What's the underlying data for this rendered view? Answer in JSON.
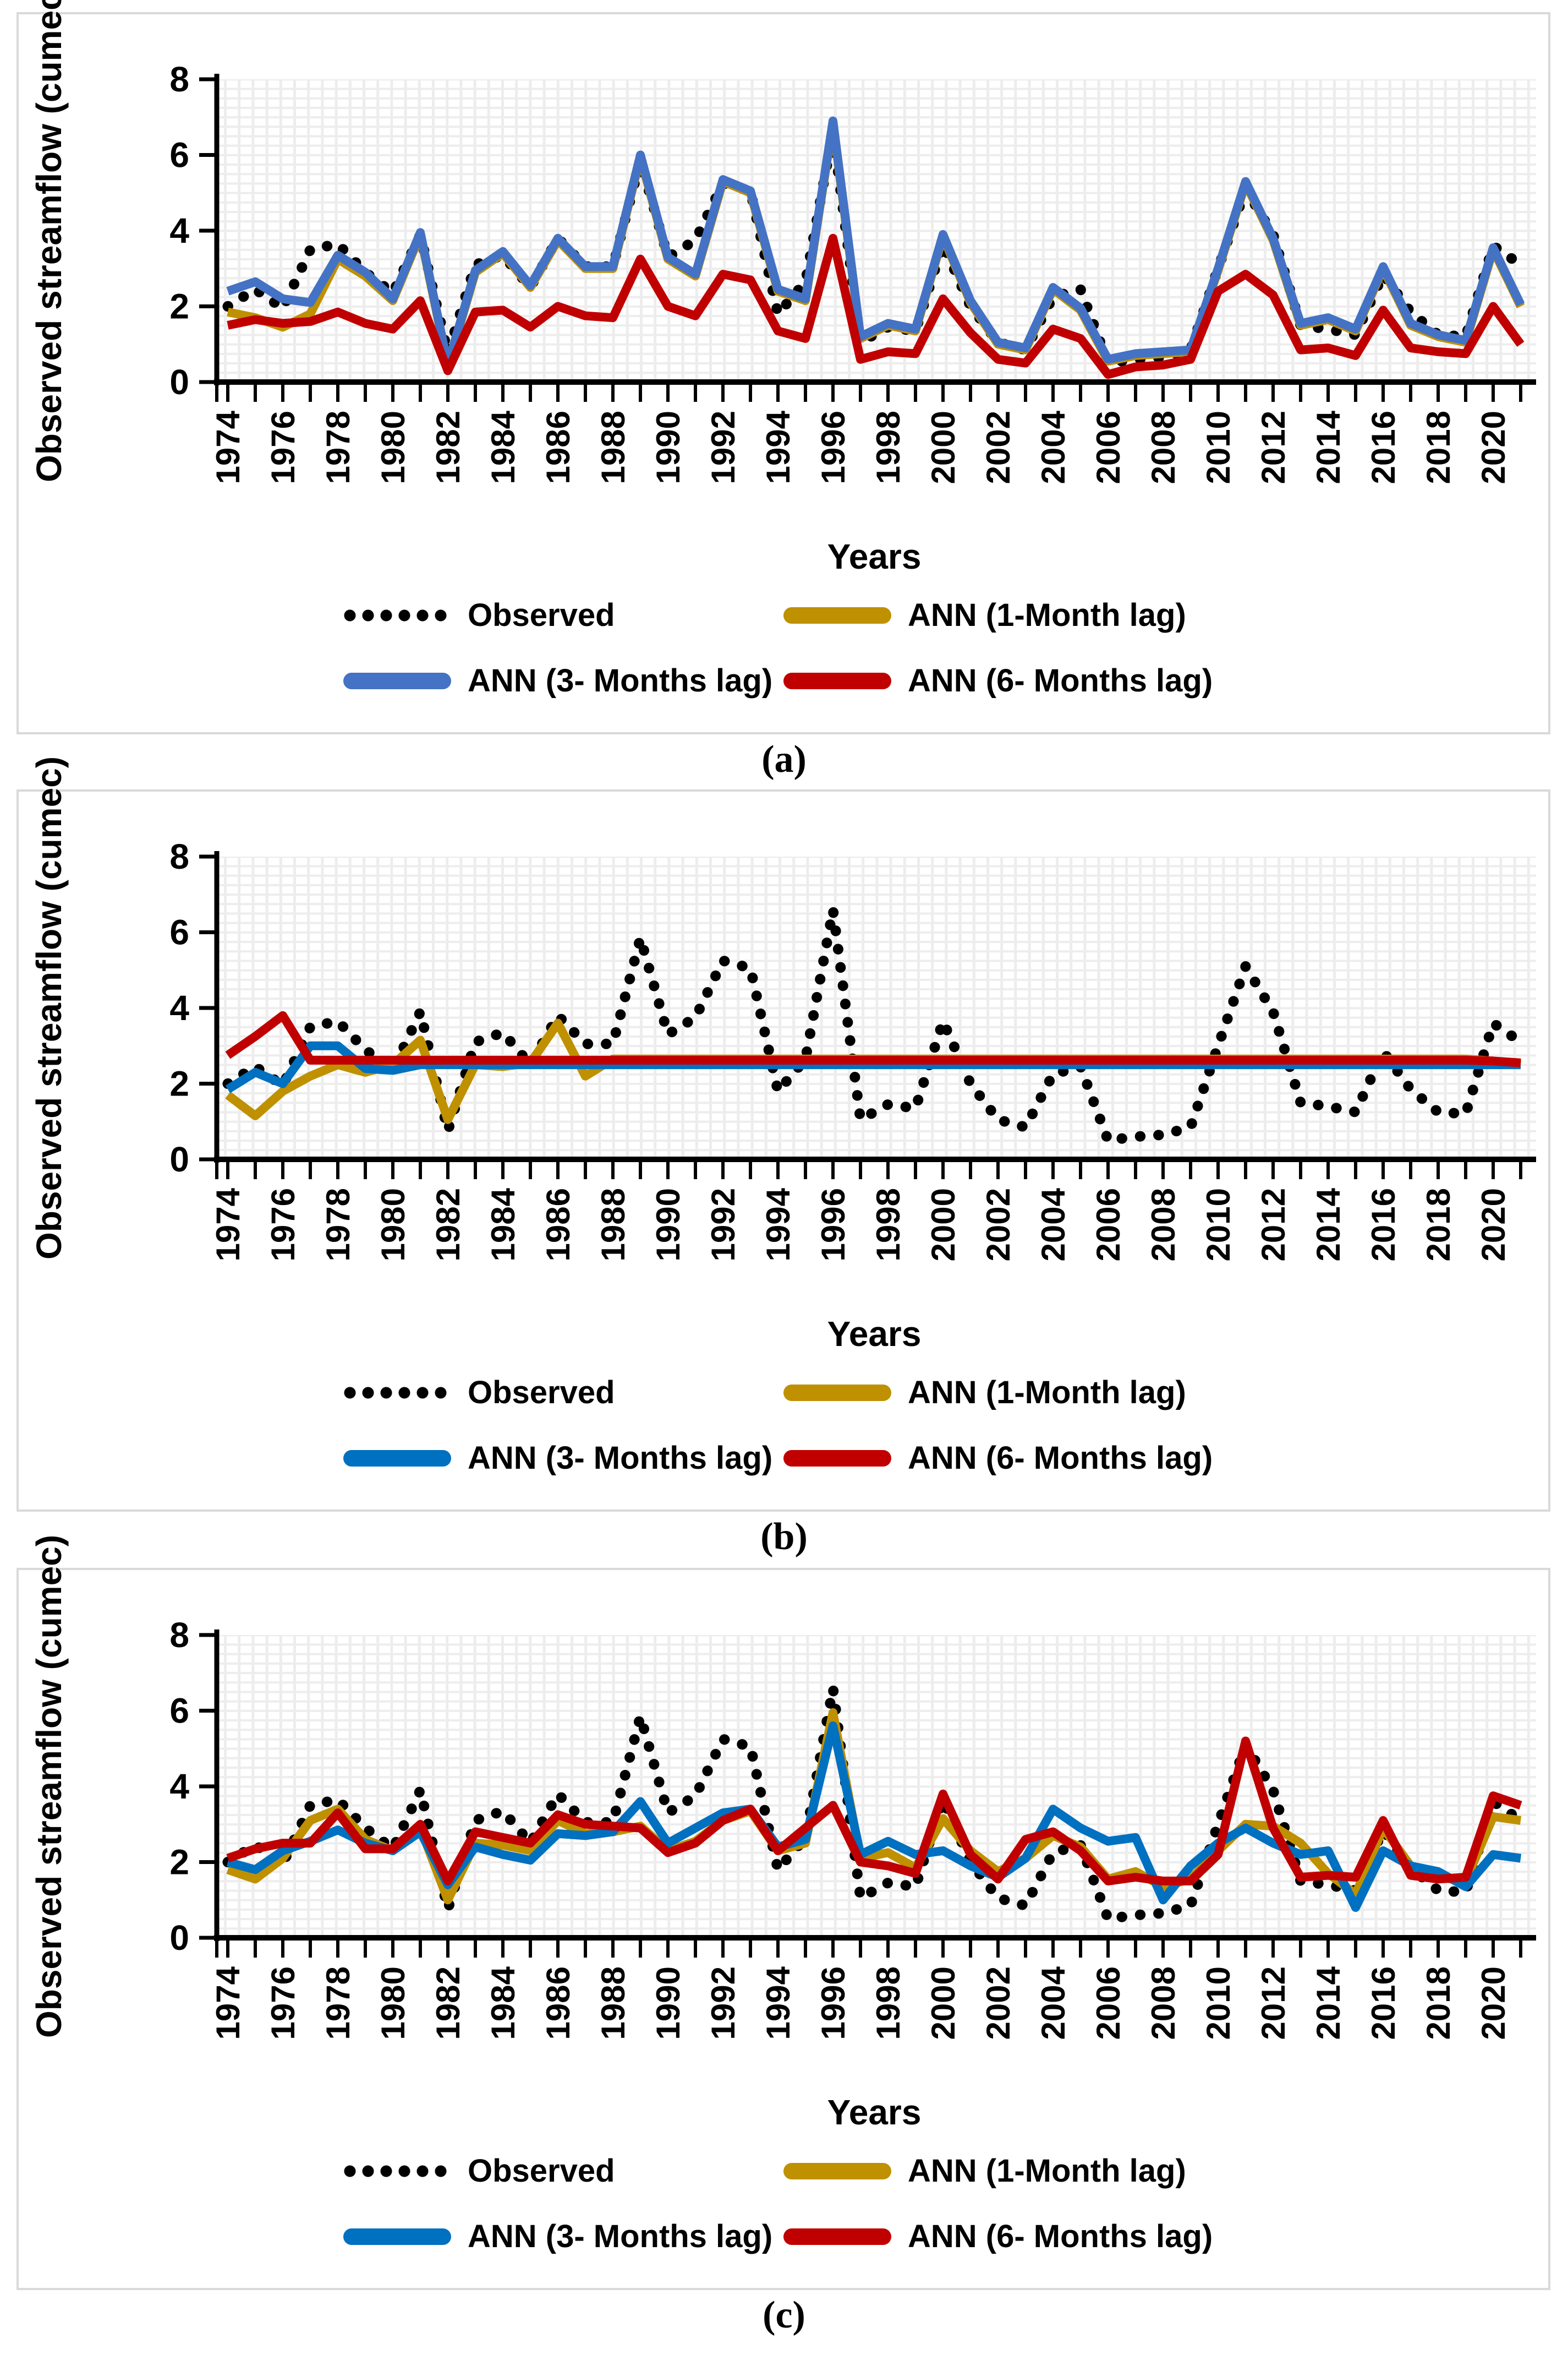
{
  "figure": {
    "y_axis_title": "Observed streamflow (cumec)",
    "x_axis_title": "Years",
    "y_ticks": [
      "0",
      "2",
      "4",
      "6",
      "8"
    ],
    "ylim": [
      0,
      8
    ],
    "x_years": [
      1974,
      1975,
      1976,
      1977,
      1978,
      1979,
      1980,
      1981,
      1982,
      1983,
      1984,
      1985,
      1986,
      1987,
      1988,
      1989,
      1990,
      1991,
      1992,
      1993,
      1994,
      1995,
      1996,
      1997,
      1998,
      1999,
      2000,
      2001,
      2002,
      2003,
      2004,
      2005,
      2006,
      2007,
      2008,
      2009,
      2010,
      2011,
      2012,
      2013,
      2014,
      2015,
      2016,
      2017,
      2018,
      2019,
      2020,
      2021
    ],
    "x_labeled_years": [
      1974,
      1976,
      1978,
      1980,
      1982,
      1984,
      1986,
      1988,
      1990,
      1992,
      1994,
      1996,
      1998,
      2000,
      2002,
      2004,
      2006,
      2008,
      2010,
      2012,
      2014,
      2016,
      2018,
      2020
    ],
    "captions": [
      "(a)",
      "(b)",
      "(c)"
    ]
  },
  "legend_labels": [
    "Observed",
    "ANN (1-Month lag)",
    "ANN (3- Months lag)",
    "ANN (6- Months lag)"
  ],
  "colors": {
    "observed": "#000000",
    "ann_1_month": "#BF9000",
    "ann_3_months_panel_a": "#4472C4",
    "ann_3_months_panel_bc": "#0070C0",
    "ann_6_months": "#C00000",
    "grid": "#EDEDED",
    "panel_border": "#D9D9D9",
    "axis": "#000000"
  },
  "chart_data": [
    {
      "panel": "a",
      "type": "line",
      "title": "",
      "xlabel": "Years",
      "ylabel": "Observed streamflow (cumec)",
      "ylim": [
        0,
        8
      ],
      "grid": true,
      "legend_position": "bottom",
      "x": [
        1974,
        1975,
        1976,
        1977,
        1978,
        1979,
        1980,
        1981,
        1982,
        1983,
        1984,
        1985,
        1986,
        1987,
        1988,
        1989,
        1990,
        1991,
        1992,
        1993,
        1994,
        1995,
        1996,
        1997,
        1998,
        1999,
        2000,
        2001,
        2002,
        2003,
        2004,
        2005,
        2006,
        2007,
        2008,
        2009,
        2010,
        2011,
        2012,
        2013,
        2014,
        2015,
        2016,
        2017,
        2018,
        2019,
        2020,
        2021
      ],
      "series": [
        {
          "name": "Observed",
          "style": "dotted",
          "color": "#000000",
          "values": [
            2.0,
            2.45,
            1.95,
            3.5,
            3.65,
            2.9,
            2.35,
            3.9,
            0.75,
            3.1,
            3.35,
            2.5,
            3.8,
            3.05,
            3.05,
            5.85,
            3.3,
            3.75,
            5.25,
            5.05,
            1.8,
            2.65,
            6.6,
            1.05,
            1.45,
            1.35,
            3.65,
            2.0,
            1.05,
            0.85,
            2.25,
            2.45,
            0.5,
            0.6,
            0.65,
            0.85,
            3.0,
            5.1,
            3.9,
            1.5,
            1.4,
            1.25,
            2.85,
            1.85,
            1.25,
            1.2,
            3.6,
            3.1
          ]
        },
        {
          "name": "ANN (1-Month lag)",
          "style": "solid",
          "color": "#BF9000",
          "values": [
            1.85,
            1.7,
            1.45,
            1.8,
            3.25,
            2.8,
            2.15,
            3.9,
            0.42,
            2.9,
            3.4,
            2.5,
            3.75,
            3.0,
            3.0,
            5.95,
            3.25,
            2.8,
            5.3,
            5.0,
            2.4,
            2.15,
            6.85,
            1.15,
            1.5,
            1.35,
            3.85,
            2.1,
            1.0,
            0.85,
            2.45,
            1.9,
            0.55,
            0.7,
            0.75,
            0.8,
            2.95,
            5.25,
            3.75,
            1.5,
            1.65,
            1.35,
            3.0,
            1.5,
            1.2,
            1.05,
            3.5,
            2.0
          ]
        },
        {
          "name": "ANN (3- Months lag)",
          "style": "solid",
          "color": "#4472C4",
          "values": [
            2.4,
            2.65,
            2.2,
            2.1,
            3.35,
            2.9,
            2.2,
            3.95,
            0.45,
            2.95,
            3.45,
            2.55,
            3.8,
            3.05,
            3.05,
            6.0,
            3.3,
            2.85,
            5.35,
            5.05,
            2.45,
            2.2,
            6.9,
            1.2,
            1.55,
            1.4,
            3.9,
            2.15,
            1.05,
            0.9,
            2.5,
            1.95,
            0.6,
            0.75,
            0.8,
            0.85,
            3.0,
            5.3,
            3.8,
            1.55,
            1.7,
            1.4,
            3.05,
            1.55,
            1.25,
            1.1,
            3.55,
            2.05
          ]
        },
        {
          "name": "ANN (6- Months lag)",
          "style": "solid",
          "color": "#C00000",
          "values": [
            1.5,
            1.65,
            1.55,
            1.6,
            1.85,
            1.55,
            1.4,
            2.15,
            0.3,
            1.85,
            1.9,
            1.45,
            2.0,
            1.75,
            1.7,
            3.25,
            2.0,
            1.75,
            2.85,
            2.7,
            1.35,
            1.15,
            3.8,
            0.6,
            0.8,
            0.75,
            2.2,
            1.3,
            0.6,
            0.5,
            1.4,
            1.15,
            0.2,
            0.4,
            0.45,
            0.6,
            2.4,
            2.85,
            2.3,
            0.85,
            0.9,
            0.7,
            1.9,
            0.9,
            0.8,
            0.75,
            2.0,
            1.0
          ]
        }
      ]
    },
    {
      "panel": "b",
      "type": "line",
      "title": "",
      "xlabel": "Years",
      "ylabel": "Observed streamflow (cumec)",
      "ylim": [
        0,
        8
      ],
      "grid": true,
      "legend_position": "bottom",
      "x": [
        1974,
        1975,
        1976,
        1977,
        1978,
        1979,
        1980,
        1981,
        1982,
        1983,
        1984,
        1985,
        1986,
        1987,
        1988,
        1989,
        1990,
        1991,
        1992,
        1993,
        1994,
        1995,
        1996,
        1997,
        1998,
        1999,
        2000,
        2001,
        2002,
        2003,
        2004,
        2005,
        2006,
        2007,
        2008,
        2009,
        2010,
        2011,
        2012,
        2013,
        2014,
        2015,
        2016,
        2017,
        2018,
        2019,
        2020,
        2021
      ],
      "series": [
        {
          "name": "Observed",
          "style": "dotted",
          "color": "#000000",
          "values": [
            2.0,
            2.45,
            1.95,
            3.5,
            3.65,
            2.9,
            2.35,
            3.9,
            0.75,
            3.1,
            3.35,
            2.5,
            3.8,
            3.05,
            3.05,
            5.85,
            3.3,
            3.75,
            5.25,
            5.05,
            1.8,
            2.65,
            6.6,
            1.05,
            1.45,
            1.35,
            3.65,
            2.0,
            1.05,
            0.85,
            2.25,
            2.45,
            0.5,
            0.6,
            0.65,
            0.85,
            3.0,
            5.1,
            3.9,
            1.5,
            1.4,
            1.25,
            2.85,
            1.85,
            1.25,
            1.2,
            3.6,
            3.1
          ]
        },
        {
          "name": "ANN (1-Month lag)",
          "style": "solid",
          "color": "#BF9000",
          "values": [
            1.7,
            1.15,
            1.8,
            2.2,
            2.5,
            2.3,
            2.5,
            3.15,
            1.05,
            2.5,
            2.45,
            2.55,
            3.6,
            2.2,
            2.65,
            2.65,
            2.65,
            2.65,
            2.65,
            2.65,
            2.65,
            2.65,
            2.65,
            2.65,
            2.65,
            2.65,
            2.65,
            2.65,
            2.65,
            2.65,
            2.65,
            2.65,
            2.65,
            2.65,
            2.65,
            2.65,
            2.65,
            2.65,
            2.65,
            2.65,
            2.65,
            2.65,
            2.65,
            2.65,
            2.65,
            2.65,
            2.6,
            2.5
          ]
        },
        {
          "name": "ANN (3- Months lag)",
          "style": "solid",
          "color": "#0070C0",
          "values": [
            1.85,
            2.3,
            2.0,
            3.0,
            3.0,
            2.4,
            2.35,
            2.5,
            2.5,
            2.5,
            2.5,
            2.5,
            2.5,
            2.5,
            2.5,
            2.5,
            2.5,
            2.5,
            2.5,
            2.5,
            2.5,
            2.5,
            2.5,
            2.5,
            2.5,
            2.5,
            2.5,
            2.5,
            2.5,
            2.5,
            2.5,
            2.5,
            2.5,
            2.5,
            2.5,
            2.5,
            2.5,
            2.5,
            2.5,
            2.5,
            2.5,
            2.5,
            2.5,
            2.5,
            2.5,
            2.5,
            2.5,
            2.5
          ]
        },
        {
          "name": "ANN (6- Months lag)",
          "style": "solid",
          "color": "#C00000",
          "values": [
            2.75,
            3.25,
            3.8,
            2.62,
            2.62,
            2.62,
            2.62,
            2.62,
            2.62,
            2.62,
            2.62,
            2.62,
            2.62,
            2.62,
            2.62,
            2.62,
            2.62,
            2.62,
            2.62,
            2.62,
            2.62,
            2.62,
            2.62,
            2.62,
            2.62,
            2.62,
            2.62,
            2.62,
            2.62,
            2.62,
            2.62,
            2.62,
            2.62,
            2.62,
            2.62,
            2.62,
            2.62,
            2.62,
            2.62,
            2.62,
            2.62,
            2.62,
            2.62,
            2.62,
            2.62,
            2.62,
            2.6,
            2.55
          ]
        }
      ]
    },
    {
      "panel": "c",
      "type": "line",
      "title": "",
      "xlabel": "Years",
      "ylabel": "Observed streamflow (cumec)",
      "ylim": [
        0,
        8
      ],
      "grid": true,
      "legend_position": "bottom",
      "x": [
        1974,
        1975,
        1976,
        1977,
        1978,
        1979,
        1980,
        1981,
        1982,
        1983,
        1984,
        1985,
        1986,
        1987,
        1988,
        1989,
        1990,
        1991,
        1992,
        1993,
        1994,
        1995,
        1996,
        1997,
        1998,
        1999,
        2000,
        2001,
        2002,
        2003,
        2004,
        2005,
        2006,
        2007,
        2008,
        2009,
        2010,
        2011,
        2012,
        2013,
        2014,
        2015,
        2016,
        2017,
        2018,
        2019,
        2020,
        2021
      ],
      "series": [
        {
          "name": "Observed",
          "style": "dotted",
          "color": "#000000",
          "values": [
            2.0,
            2.45,
            1.95,
            3.5,
            3.65,
            2.9,
            2.35,
            3.9,
            0.75,
            3.1,
            3.35,
            2.5,
            3.8,
            3.05,
            3.05,
            5.85,
            3.3,
            3.75,
            5.25,
            5.05,
            1.8,
            2.65,
            6.6,
            1.05,
            1.45,
            1.35,
            3.65,
            2.0,
            1.05,
            0.85,
            2.25,
            2.45,
            0.5,
            0.6,
            0.65,
            0.85,
            3.0,
            5.1,
            3.9,
            1.5,
            1.4,
            1.25,
            2.85,
            1.85,
            1.25,
            1.2,
            3.6,
            3.1
          ]
        },
        {
          "name": "ANN (1-Month lag)",
          "style": "solid",
          "color": "#BF9000",
          "values": [
            1.8,
            1.55,
            2.1,
            3.1,
            3.4,
            2.6,
            2.3,
            2.9,
            1.0,
            2.5,
            2.45,
            2.3,
            3.1,
            2.75,
            2.8,
            2.95,
            2.3,
            2.55,
            3.1,
            3.35,
            2.3,
            2.5,
            5.95,
            2.1,
            2.25,
            1.85,
            3.15,
            2.3,
            1.75,
            2.1,
            2.7,
            2.4,
            1.55,
            1.75,
            1.35,
            1.55,
            2.3,
            3.0,
            2.95,
            2.5,
            1.7,
            1.15,
            2.9,
            1.9,
            1.6,
            1.5,
            3.2,
            3.1
          ]
        },
        {
          "name": "ANN (3- Months lag)",
          "style": "solid",
          "color": "#0070C0",
          "values": [
            2.0,
            1.8,
            2.3,
            2.55,
            2.85,
            2.5,
            2.3,
            2.8,
            1.4,
            2.4,
            2.2,
            2.05,
            2.75,
            2.7,
            2.8,
            3.6,
            2.5,
            2.9,
            3.3,
            3.4,
            2.4,
            2.6,
            5.6,
            2.2,
            2.55,
            2.2,
            2.3,
            1.9,
            1.6,
            2.1,
            3.4,
            2.9,
            2.55,
            2.65,
            1.0,
            1.9,
            2.5,
            2.9,
            2.5,
            2.2,
            2.3,
            0.8,
            2.3,
            1.9,
            1.75,
            1.35,
            2.2,
            2.1
          ]
        },
        {
          "name": "ANN (6- Months lag)",
          "style": "solid",
          "color": "#C00000",
          "values": [
            2.1,
            2.35,
            2.5,
            2.5,
            3.3,
            2.35,
            2.35,
            3.0,
            1.5,
            2.8,
            2.65,
            2.5,
            3.25,
            3.0,
            2.95,
            2.9,
            2.25,
            2.5,
            3.1,
            3.4,
            2.3,
            2.9,
            3.5,
            2.0,
            1.9,
            1.7,
            3.8,
            2.2,
            1.55,
            2.6,
            2.8,
            2.3,
            1.5,
            1.6,
            1.5,
            1.5,
            2.2,
            5.2,
            2.9,
            1.6,
            1.65,
            1.6,
            3.1,
            1.65,
            1.55,
            1.6,
            3.75,
            3.5
          ]
        }
      ]
    }
  ]
}
